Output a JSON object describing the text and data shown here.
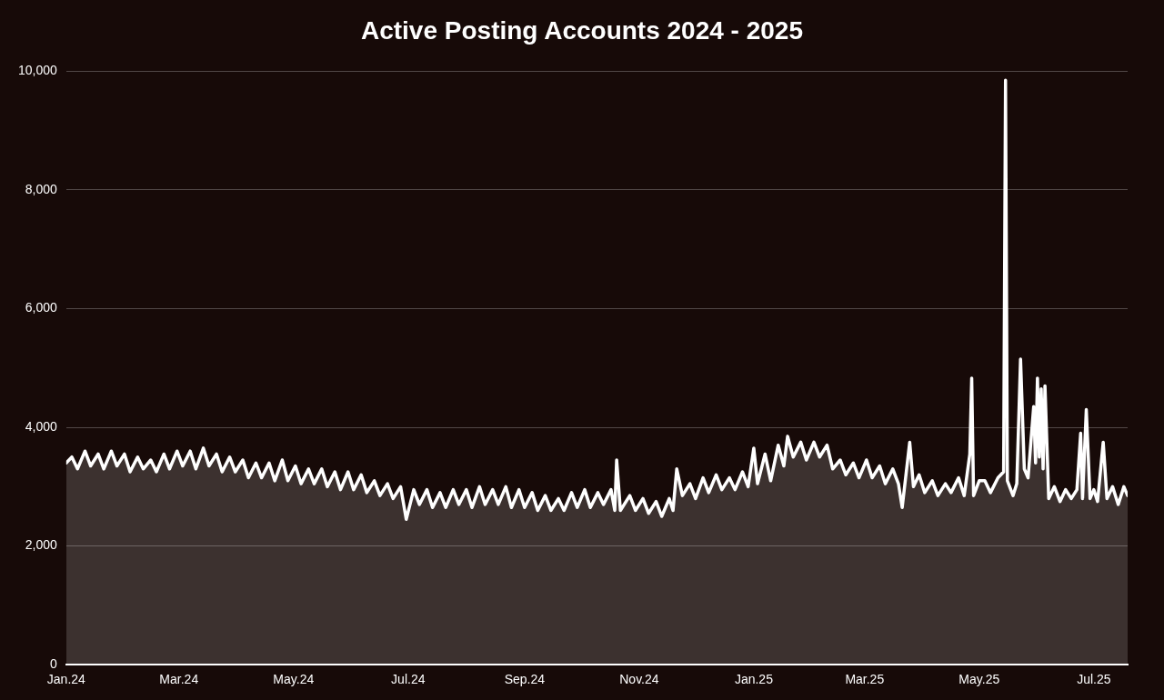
{
  "chart_data": {
    "type": "area",
    "title": "Active Posting Accounts 2024 - 2025",
    "x": [
      "2024-01-01",
      "2024-01-04",
      "2024-01-07",
      "2024-01-11",
      "2024-01-14",
      "2024-01-18",
      "2024-01-21",
      "2024-01-25",
      "2024-01-28",
      "2024-02-01",
      "2024-02-04",
      "2024-02-08",
      "2024-02-11",
      "2024-02-15",
      "2024-02-18",
      "2024-02-22",
      "2024-02-25",
      "2024-02-29",
      "2024-03-03",
      "2024-03-07",
      "2024-03-10",
      "2024-03-14",
      "2024-03-17",
      "2024-03-21",
      "2024-03-24",
      "2024-03-28",
      "2024-03-31",
      "2024-04-04",
      "2024-04-07",
      "2024-04-11",
      "2024-04-14",
      "2024-04-18",
      "2024-04-21",
      "2024-04-25",
      "2024-04-28",
      "2024-05-02",
      "2024-05-05",
      "2024-05-09",
      "2024-05-12",
      "2024-05-16",
      "2024-05-19",
      "2024-05-23",
      "2024-05-26",
      "2024-05-30",
      "2024-06-02",
      "2024-06-06",
      "2024-06-09",
      "2024-06-13",
      "2024-06-16",
      "2024-06-20",
      "2024-06-23",
      "2024-06-27",
      "2024-06-30",
      "2024-07-04",
      "2024-07-07",
      "2024-07-11",
      "2024-07-14",
      "2024-07-18",
      "2024-07-21",
      "2024-07-25",
      "2024-07-28",
      "2024-08-01",
      "2024-08-04",
      "2024-08-08",
      "2024-08-11",
      "2024-08-15",
      "2024-08-18",
      "2024-08-22",
      "2024-08-25",
      "2024-08-29",
      "2024-09-01",
      "2024-09-05",
      "2024-09-08",
      "2024-09-12",
      "2024-09-15",
      "2024-09-19",
      "2024-09-22",
      "2024-09-26",
      "2024-09-29",
      "2024-10-03",
      "2024-10-06",
      "2024-10-10",
      "2024-10-13",
      "2024-10-17",
      "2024-10-19",
      "2024-10-20",
      "2024-10-22",
      "2024-10-27",
      "2024-10-30",
      "2024-11-03",
      "2024-11-06",
      "2024-11-10",
      "2024-11-13",
      "2024-11-17",
      "2024-11-19",
      "2024-11-21",
      "2024-11-24",
      "2024-11-28",
      "2024-12-01",
      "2024-12-05",
      "2024-12-08",
      "2024-12-12",
      "2024-12-15",
      "2024-12-19",
      "2024-12-22",
      "2024-12-26",
      "2024-12-29",
      "2025-01-01",
      "2025-01-03",
      "2025-01-07",
      "2025-01-10",
      "2025-01-14",
      "2025-01-17",
      "2025-01-19",
      "2025-01-22",
      "2025-01-26",
      "2025-01-29",
      "2025-02-02",
      "2025-02-05",
      "2025-02-09",
      "2025-02-12",
      "2025-02-16",
      "2025-02-19",
      "2025-02-23",
      "2025-02-26",
      "2025-03-02",
      "2025-03-05",
      "2025-03-09",
      "2025-03-12",
      "2025-03-16",
      "2025-03-19",
      "2025-03-21",
      "2025-03-25",
      "2025-03-27",
      "2025-03-30",
      "2025-04-02",
      "2025-04-06",
      "2025-04-09",
      "2025-04-13",
      "2025-04-16",
      "2025-04-20",
      "2025-04-23",
      "2025-04-26",
      "2025-04-27",
      "2025-04-28",
      "2025-05-01",
      "2025-05-04",
      "2025-05-07",
      "2025-05-11",
      "2025-05-14",
      "2025-05-15",
      "2025-05-16",
      "2025-05-19",
      "2025-05-21",
      "2025-05-23",
      "2025-05-25",
      "2025-05-27",
      "2025-05-30",
      "2025-05-31",
      "2025-06-01",
      "2025-06-02",
      "2025-06-03",
      "2025-06-04",
      "2025-06-05",
      "2025-06-07",
      "2025-06-10",
      "2025-06-13",
      "2025-06-16",
      "2025-06-19",
      "2025-06-22",
      "2025-06-24",
      "2025-06-25",
      "2025-06-27",
      "2025-06-29",
      "2025-07-01",
      "2025-07-03",
      "2025-07-06",
      "2025-07-08",
      "2025-07-11",
      "2025-07-14",
      "2025-07-17",
      "2025-07-19"
    ],
    "series": [
      {
        "color": "#ffffff",
        "values": [
          3400,
          3500,
          3300,
          3600,
          3350,
          3550,
          3300,
          3600,
          3350,
          3550,
          3250,
          3500,
          3300,
          3450,
          3250,
          3550,
          3300,
          3600,
          3350,
          3600,
          3300,
          3650,
          3350,
          3550,
          3250,
          3500,
          3250,
          3450,
          3150,
          3400,
          3150,
          3400,
          3100,
          3450,
          3100,
          3350,
          3050,
          3300,
          3050,
          3300,
          3000,
          3250,
          2950,
          3250,
          2950,
          3200,
          2900,
          3100,
          2850,
          3050,
          2800,
          3000,
          2450,
          2950,
          2700,
          2950,
          2650,
          2900,
          2650,
          2950,
          2700,
          2950,
          2650,
          3000,
          2700,
          2950,
          2700,
          3000,
          2650,
          2950,
          2650,
          2900,
          2600,
          2850,
          2600,
          2800,
          2600,
          2900,
          2650,
          2950,
          2650,
          2900,
          2700,
          2950,
          2600,
          3450,
          2600,
          2850,
          2600,
          2800,
          2550,
          2750,
          2500,
          2800,
          2600,
          3300,
          2850,
          3050,
          2800,
          3150,
          2900,
          3200,
          2950,
          3150,
          2950,
          3250,
          3000,
          3650,
          3050,
          3550,
          3100,
          3700,
          3350,
          3850,
          3500,
          3750,
          3450,
          3750,
          3500,
          3700,
          3300,
          3450,
          3200,
          3400,
          3150,
          3450,
          3150,
          3350,
          3050,
          3300,
          3050,
          2650,
          3750,
          3000,
          3200,
          2900,
          3100,
          2850,
          3050,
          2900,
          3150,
          2850,
          3550,
          4830,
          2850,
          3100,
          3100,
          2900,
          3150,
          3250,
          9850,
          3100,
          2850,
          3050,
          5150,
          3300,
          3150,
          4350,
          3400,
          4830,
          3500,
          4650,
          3300,
          4700,
          2800,
          3000,
          2750,
          2950,
          2800,
          2950,
          3900,
          2800,
          4300,
          2800,
          2950,
          2750,
          3750,
          2800,
          3000,
          2700,
          3000,
          2850
        ]
      }
    ],
    "xlim": [
      "2024-01-01",
      "2025-07-19"
    ],
    "xticks": [
      {
        "value": "2024-01-01",
        "label": "Jan.24"
      },
      {
        "value": "2024-03-01",
        "label": "Mar.24"
      },
      {
        "value": "2024-05-01",
        "label": "May.24"
      },
      {
        "value": "2024-07-01",
        "label": "Jul.24"
      },
      {
        "value": "2024-09-01",
        "label": "Sep.24"
      },
      {
        "value": "2024-11-01",
        "label": "Nov.24"
      },
      {
        "value": "2025-01-01",
        "label": "Jan.25"
      },
      {
        "value": "2025-03-01",
        "label": "Mar.25"
      },
      {
        "value": "2025-05-01",
        "label": "May.25"
      },
      {
        "value": "2025-07-01",
        "label": "Jul.25"
      }
    ],
    "ylim": [
      0,
      10000
    ],
    "yticks": [
      0,
      {
        "value": 2000,
        "label": "2,000"
      },
      {
        "value": 4000,
        "label": "4,000"
      },
      {
        "value": 6000,
        "label": "6,000"
      },
      {
        "value": 8000,
        "label": "8,000"
      },
      {
        "value": 10000,
        "label": "10,000"
      }
    ],
    "grid": "y",
    "legend": false,
    "marker": "none",
    "line_style": "solid"
  }
}
